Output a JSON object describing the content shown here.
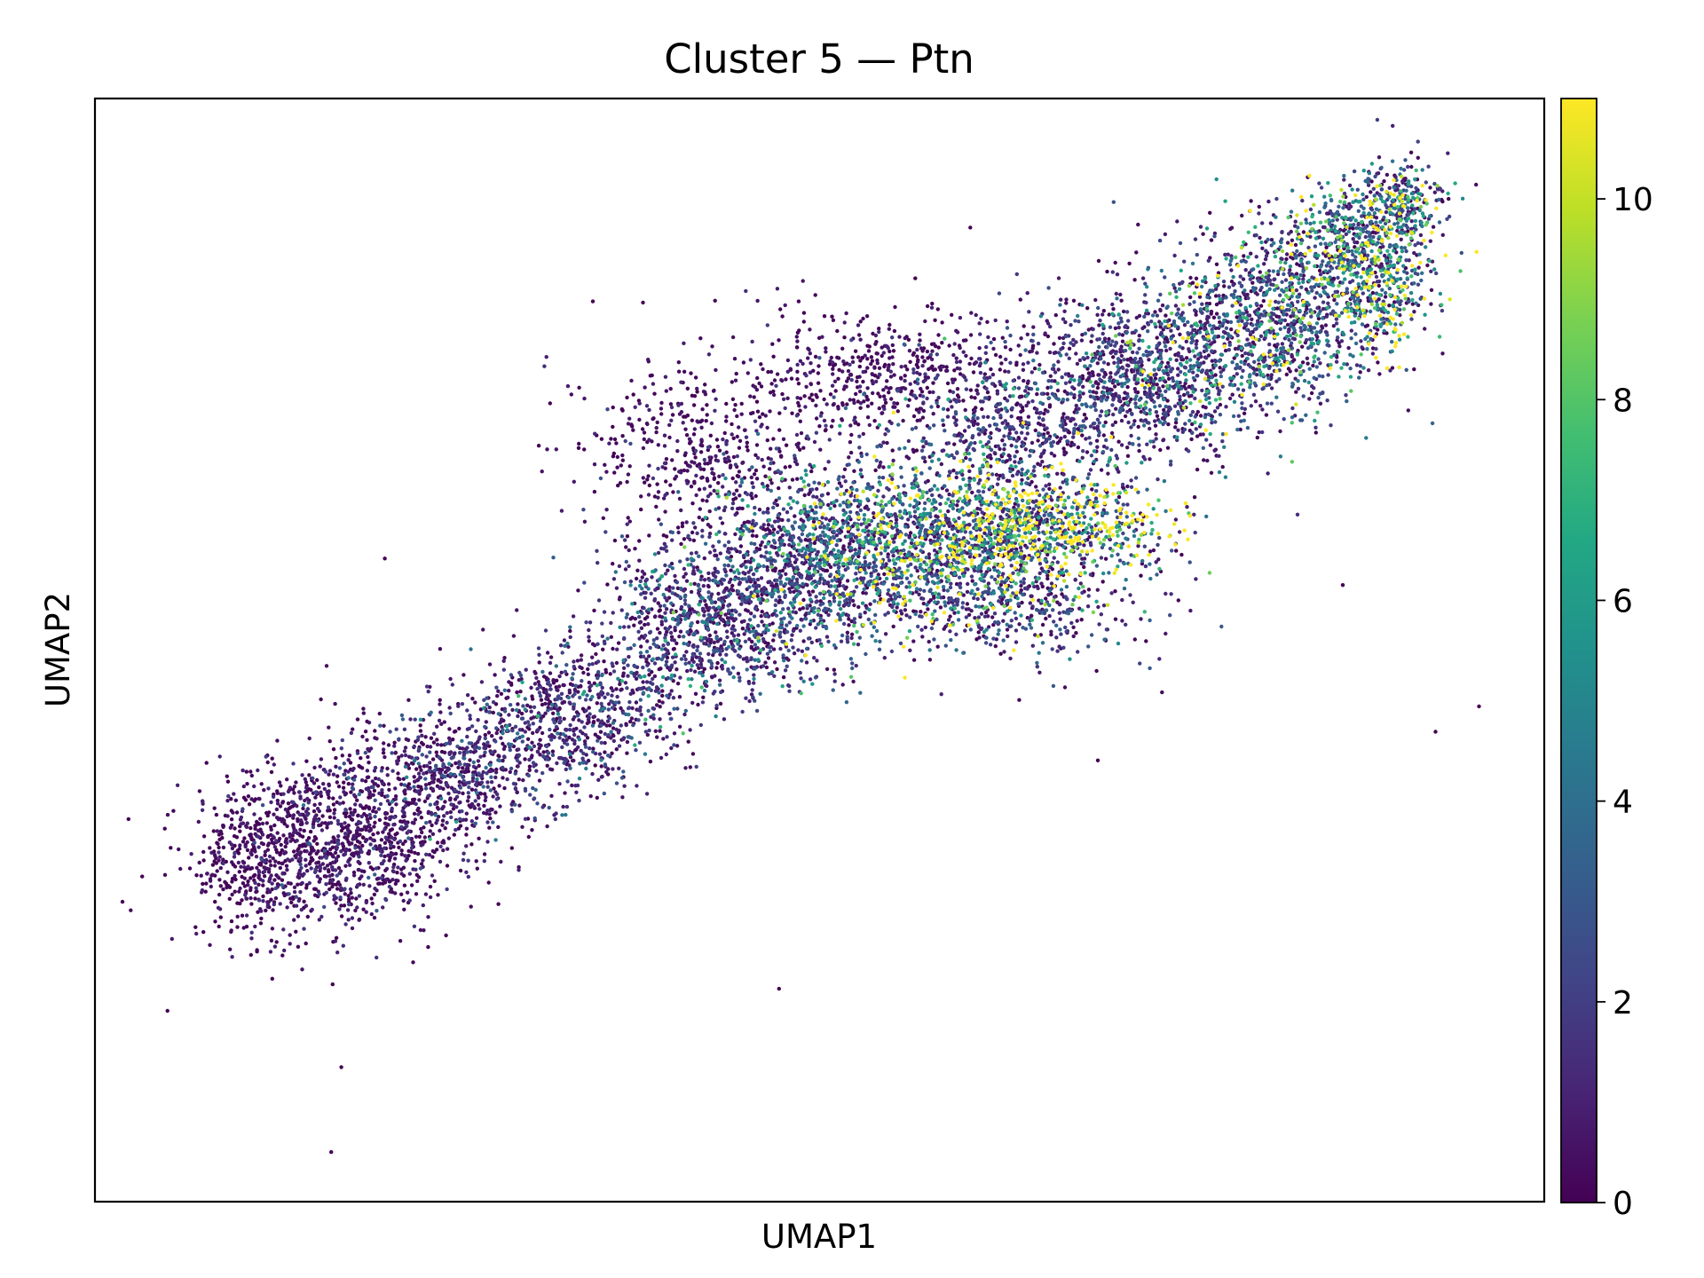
{
  "chart_data": {
    "type": "scatter",
    "title": "Cluster 5 — Ptn",
    "xlabel": "UMAP1",
    "ylabel": "UMAP2",
    "xlim": [
      0,
      100
    ],
    "ylim": [
      0,
      100
    ],
    "x_ticks": [],
    "y_ticks": [],
    "grid": false,
    "colormap": "viridis",
    "colorbar": {
      "range": [
        0,
        11
      ],
      "ticks": [
        0,
        2,
        4,
        6,
        8,
        10
      ],
      "tick_labels": [
        "0",
        "2",
        "4",
        "6",
        "8",
        "10"
      ]
    },
    "series": [
      {
        "points": [
          [
            5,
            17.3,
            0
          ],
          [
            16.3,
            4.5,
            0
          ],
          [
            17.0,
            12.2,
            0
          ],
          [
            16.4,
            19.7,
            0
          ],
          [
            20.0,
            58.3,
            0
          ],
          [
            47.2,
            19.3,
            0
          ],
          [
            60.4,
            88.3,
            0
          ],
          [
            58.4,
            46.0,
            1
          ],
          [
            69.2,
            40.0,
            0
          ],
          [
            92.5,
            42.6,
            0
          ],
          [
            95.5,
            44.9,
            0
          ],
          [
            93.4,
            90.9,
            0
          ],
          [
            86.1,
            55.9,
            0
          ],
          [
            74.6,
            59.0,
            0
          ],
          [
            56.6,
            83.7,
            0
          ]
        ],
        "clusters": [
          {
            "cx": 17,
            "cy": 33,
            "sx": 4.2,
            "sy": 4.0,
            "n": 1100,
            "mean": 0.6
          },
          {
            "cx": 11,
            "cy": 30,
            "sx": 2.2,
            "sy": 3.2,
            "n": 260,
            "mean": 0.4
          },
          {
            "cx": 25,
            "cy": 39,
            "sx": 3.5,
            "sy": 3.0,
            "n": 600,
            "mean": 1.2
          },
          {
            "cx": 33,
            "cy": 44,
            "sx": 3.6,
            "sy": 3.0,
            "n": 650,
            "mean": 1.4
          },
          {
            "cx": 42,
            "cy": 52,
            "sx": 4.0,
            "sy": 3.4,
            "n": 850,
            "mean": 1.7
          },
          {
            "cx": 49,
            "cy": 58,
            "sx": 4.0,
            "sy": 4.0,
            "n": 1050,
            "mean": 2.5
          },
          {
            "cx": 58,
            "cy": 60,
            "sx": 4.5,
            "sy": 4.0,
            "n": 1300,
            "mean": 4.2
          },
          {
            "cx": 64,
            "cy": 61,
            "sx": 3.0,
            "sy": 2.5,
            "n": 450,
            "mean": 7.8
          },
          {
            "cx": 70,
            "cy": 61,
            "sx": 2.4,
            "sy": 1.9,
            "n": 220,
            "mean": 8.8
          },
          {
            "cx": 64,
            "cy": 54,
            "sx": 4.6,
            "sy": 2.6,
            "n": 380,
            "mean": 2.0
          },
          {
            "cx": 42,
            "cy": 68,
            "sx": 4.5,
            "sy": 4.0,
            "n": 450,
            "mean": 0.5
          },
          {
            "cx": 54,
            "cy": 75,
            "sx": 4.5,
            "sy": 3.0,
            "n": 450,
            "mean": 0.5
          },
          {
            "cx": 64,
            "cy": 71,
            "sx": 4.5,
            "sy": 4.0,
            "n": 650,
            "mean": 1.5
          },
          {
            "cx": 73,
            "cy": 75,
            "sx": 4.0,
            "sy": 4.0,
            "n": 950,
            "mean": 2.0
          },
          {
            "cx": 81,
            "cy": 80,
            "sx": 3.6,
            "sy": 4.0,
            "n": 950,
            "mean": 2.8
          },
          {
            "cx": 87,
            "cy": 86,
            "sx": 2.8,
            "sy": 3.2,
            "n": 700,
            "mean": 4.2
          },
          {
            "cx": 89,
            "cy": 81,
            "sx": 1.4,
            "sy": 3.0,
            "n": 120,
            "mean": 8.2
          },
          {
            "cx": 90,
            "cy": 91,
            "sx": 1.6,
            "sy": 1.8,
            "n": 220,
            "mean": 3.5
          }
        ]
      }
    ]
  }
}
